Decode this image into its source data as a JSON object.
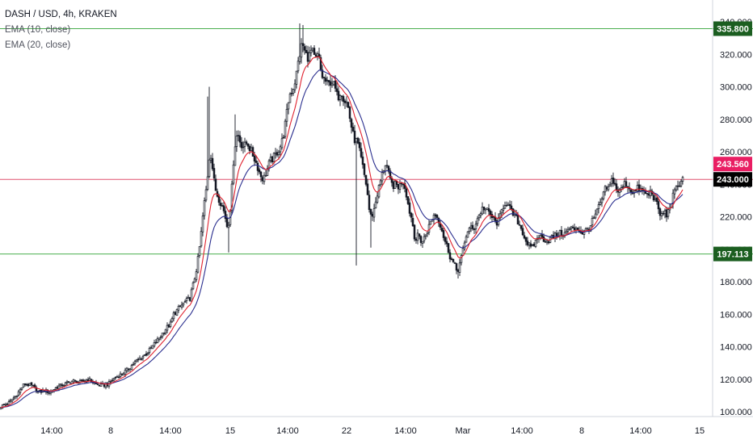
{
  "legend": {
    "symbol_line": "DASH / USD, 4h, KRAKEN",
    "ema10": "EMA (10, close)",
    "ema20": "EMA (20, close)"
  },
  "colors": {
    "candle": "#131722",
    "ema10": "#e0222f",
    "ema20": "#2b2f8f",
    "green_level": "#4caf50",
    "red_level": "#e0506f",
    "red_tag": "#e91e63",
    "dark_tag": "#000000"
  },
  "chart_data": {
    "type": "candlestick",
    "title": "DASH / USD, 4h, KRAKEN",
    "y_axis": {
      "ticks": [
        "100.000",
        "120.000",
        "140.000",
        "160.000",
        "180.000",
        "200.000",
        "220.000",
        "240.000",
        "260.000",
        "280.000",
        "300.000",
        "320.000",
        "340.000"
      ],
      "range": [
        97,
        342
      ]
    },
    "x_axis": {
      "ticks": [
        "14:00",
        "8",
        "14:00",
        "15",
        "14:00",
        "22",
        "14:00",
        "Mar",
        "14:00",
        "8",
        "14:00",
        "15"
      ]
    },
    "horizontal_levels": [
      {
        "value": 335.8,
        "label": "335.800",
        "color": "green"
      },
      {
        "value": 243.0,
        "label": "243.000",
        "color": "red"
      },
      {
        "value": 197.113,
        "label": "197.113",
        "color": "green"
      }
    ],
    "price_tags": [
      {
        "value": 243.56,
        "label": "243.560",
        "style": "red"
      },
      {
        "value": 243.0,
        "label": "243.000",
        "style": "dark"
      }
    ],
    "series": [
      {
        "name": "EMA (10, close)",
        "color": "#e0222f"
      },
      {
        "name": "EMA (20, close)",
        "color": "#2b2f8f"
      }
    ],
    "price_anchors": [
      [
        0,
        103
      ],
      [
        10,
        105
      ],
      [
        20,
        110
      ],
      [
        30,
        117
      ],
      [
        40,
        116
      ],
      [
        48,
        112
      ],
      [
        55,
        113
      ],
      [
        62,
        112
      ],
      [
        70,
        115
      ],
      [
        80,
        117
      ],
      [
        90,
        119
      ],
      [
        100,
        118
      ],
      [
        110,
        120
      ],
      [
        118,
        117
      ],
      [
        126,
        116
      ],
      [
        134,
        117
      ],
      [
        142,
        121
      ],
      [
        150,
        123
      ],
      [
        158,
        126
      ],
      [
        166,
        130
      ],
      [
        174,
        133
      ],
      [
        182,
        136
      ],
      [
        190,
        141
      ],
      [
        198,
        146
      ],
      [
        205,
        151
      ],
      [
        211,
        154
      ],
      [
        215,
        160
      ],
      [
        220,
        163
      ],
      [
        228,
        167
      ],
      [
        235,
        170
      ],
      [
        240,
        180
      ],
      [
        244,
        190
      ],
      [
        248,
        205
      ],
      [
        252,
        225
      ],
      [
        256,
        240
      ],
      [
        260,
        262
      ],
      [
        263,
        250
      ],
      [
        266,
        238
      ],
      [
        270,
        232
      ],
      [
        274,
        228
      ],
      [
        278,
        222
      ],
      [
        282,
        212
      ],
      [
        286,
        230
      ],
      [
        290,
        262
      ],
      [
        294,
        272
      ],
      [
        298,
        265
      ],
      [
        302,
        263
      ],
      [
        306,
        266
      ],
      [
        310,
        261
      ],
      [
        314,
        257
      ],
      [
        318,
        252
      ],
      [
        322,
        246
      ],
      [
        326,
        243
      ],
      [
        330,
        248
      ],
      [
        334,
        254
      ],
      [
        338,
        256
      ],
      [
        342,
        259
      ],
      [
        346,
        262
      ],
      [
        350,
        268
      ],
      [
        354,
        280
      ],
      [
        358,
        295
      ],
      [
        362,
        298
      ],
      [
        366,
        305
      ],
      [
        370,
        318
      ],
      [
        374,
        327
      ],
      [
        378,
        320
      ],
      [
        382,
        318
      ],
      [
        386,
        323
      ],
      [
        390,
        316
      ],
      [
        394,
        320
      ],
      [
        398,
        307
      ],
      [
        402,
        304
      ],
      [
        406,
        301
      ],
      [
        410,
        304
      ],
      [
        414,
        300
      ],
      [
        418,
        293
      ],
      [
        422,
        298
      ],
      [
        426,
        292
      ],
      [
        430,
        290
      ],
      [
        434,
        278
      ],
      [
        438,
        268
      ],
      [
        442,
        266
      ],
      [
        446,
        258
      ],
      [
        450,
        248
      ],
      [
        454,
        238
      ],
      [
        458,
        220
      ],
      [
        462,
        222
      ],
      [
        466,
        232
      ],
      [
        470,
        240
      ],
      [
        474,
        248
      ],
      [
        478,
        254
      ],
      [
        482,
        243
      ],
      [
        486,
        239
      ],
      [
        490,
        240
      ],
      [
        494,
        238
      ],
      [
        498,
        243
      ],
      [
        502,
        237
      ],
      [
        506,
        225
      ],
      [
        510,
        218
      ],
      [
        514,
        205
      ],
      [
        518,
        209
      ],
      [
        522,
        204
      ],
      [
        526,
        208
      ],
      [
        530,
        213
      ],
      [
        534,
        218
      ],
      [
        538,
        222
      ],
      [
        542,
        219
      ],
      [
        546,
        214
      ],
      [
        550,
        206
      ],
      [
        554,
        201
      ],
      [
        558,
        194
      ],
      [
        562,
        191
      ],
      [
        566,
        186
      ],
      [
        570,
        193
      ],
      [
        574,
        201
      ],
      [
        578,
        211
      ],
      [
        582,
        213
      ],
      [
        586,
        212
      ],
      [
        590,
        218
      ],
      [
        594,
        222
      ],
      [
        598,
        226
      ],
      [
        602,
        224
      ],
      [
        606,
        222
      ],
      [
        610,
        219
      ],
      [
        614,
        216
      ],
      [
        618,
        218
      ],
      [
        622,
        226
      ],
      [
        626,
        229
      ],
      [
        630,
        226
      ],
      [
        634,
        222
      ],
      [
        638,
        220
      ],
      [
        642,
        216
      ],
      [
        646,
        212
      ],
      [
        650,
        206
      ],
      [
        654,
        203
      ],
      [
        658,
        200
      ],
      [
        662,
        204
      ],
      [
        666,
        208
      ],
      [
        670,
        207
      ],
      [
        674,
        206
      ],
      [
        678,
        205
      ],
      [
        682,
        207
      ],
      [
        686,
        208
      ],
      [
        690,
        209
      ],
      [
        694,
        210
      ],
      [
        698,
        209
      ],
      [
        702,
        211
      ],
      [
        706,
        213
      ],
      [
        710,
        212
      ],
      [
        714,
        214
      ],
      [
        718,
        211
      ],
      [
        722,
        210
      ],
      [
        726,
        212
      ],
      [
        730,
        214
      ],
      [
        734,
        218
      ],
      [
        738,
        222
      ],
      [
        742,
        227
      ],
      [
        746,
        232
      ],
      [
        750,
        238
      ],
      [
        754,
        237
      ],
      [
        758,
        244
      ],
      [
        762,
        238
      ],
      [
        766,
        235
      ],
      [
        770,
        238
      ],
      [
        774,
        241
      ],
      [
        778,
        238
      ],
      [
        782,
        236
      ],
      [
        786,
        235
      ],
      [
        790,
        238
      ],
      [
        794,
        236
      ],
      [
        798,
        235
      ],
      [
        802,
        233
      ],
      [
        806,
        236
      ],
      [
        810,
        231
      ],
      [
        814,
        226
      ],
      [
        818,
        220
      ],
      [
        822,
        223
      ],
      [
        826,
        221
      ],
      [
        830,
        228
      ],
      [
        834,
        234
      ],
      [
        838,
        238
      ],
      [
        842,
        242
      ],
      [
        846,
        244
      ]
    ],
    "special_wicks": [
      {
        "x": 256,
        "high": 294
      },
      {
        "x": 258,
        "high": 300
      },
      {
        "x": 290,
        "high": 283
      },
      {
        "x": 370,
        "high": 339
      },
      {
        "x": 374,
        "high": 338
      },
      {
        "x": 282,
        "low": 198
      },
      {
        "x": 440,
        "low": 190
      },
      {
        "x": 458,
        "low": 201
      },
      {
        "x": 566,
        "low": 182
      }
    ]
  }
}
